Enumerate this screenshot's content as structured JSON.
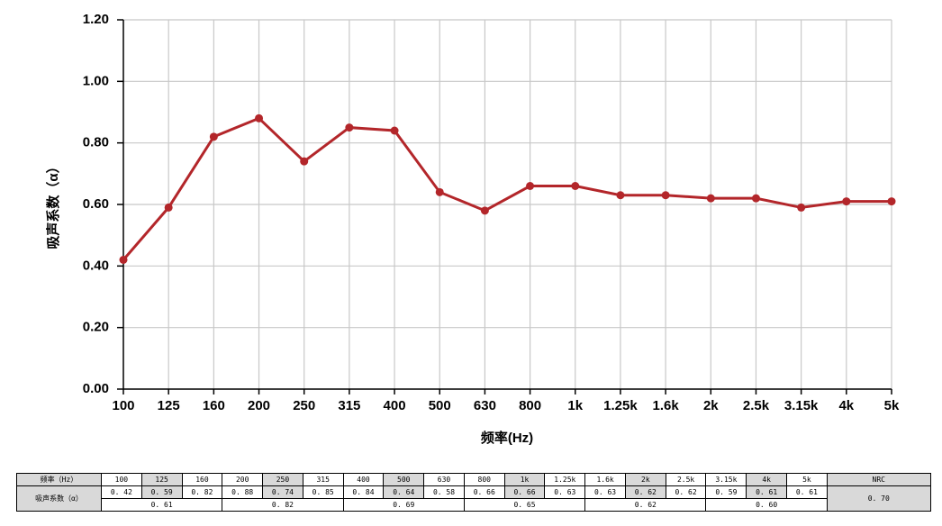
{
  "chart_data": {
    "type": "line",
    "y_label": "吸声系数（α）",
    "x_label": "频率(Hz)",
    "categories": [
      "100",
      "125",
      "160",
      "200",
      "250",
      "315",
      "400",
      "500",
      "630",
      "800",
      "1k",
      "1.25k",
      "1.6k",
      "2k",
      "2.5k",
      "3.15k",
      "4k",
      "5k"
    ],
    "series": [
      {
        "color": "#b3262a",
        "values": [
          0.42,
          0.59,
          0.82,
          0.88,
          0.74,
          0.85,
          0.84,
          0.64,
          0.58,
          0.66,
          0.66,
          0.63,
          0.63,
          0.62,
          0.62,
          0.59,
          0.61,
          0.61
        ]
      }
    ],
    "ylim": [
      0,
      1.2
    ],
    "yticks": [
      {
        "value": 0,
        "label": "0.00"
      },
      {
        "value": 0.2,
        "label": "0.20"
      },
      {
        "value": 0.4,
        "label": "0.40"
      },
      {
        "value": 0.6,
        "label": "0.60"
      },
      {
        "value": 0.8,
        "label": "0.80"
      },
      {
        "value": 1.0,
        "label": "1.00"
      },
      {
        "value": 1.2,
        "label": "1.20"
      }
    ],
    "grid": true
  },
  "table": {
    "header_label": "频率（Hz）",
    "row_label": "吸声系数（α）",
    "nrc_label": "NRC",
    "values": [
      "0. 42",
      "0. 59",
      "0. 82",
      "0. 88",
      "0. 74",
      "0. 85",
      "0. 84",
      "0. 64",
      "0. 58",
      "0. 66",
      "0. 66",
      "0. 63",
      "0. 63",
      "0. 62",
      "0. 62",
      "0. 59",
      "0. 61",
      "0. 61"
    ],
    "averages": [
      "0. 61",
      "0. 82",
      "0. 69",
      "0. 65",
      "0. 62",
      "0. 60"
    ],
    "nrc": "0. 70"
  }
}
